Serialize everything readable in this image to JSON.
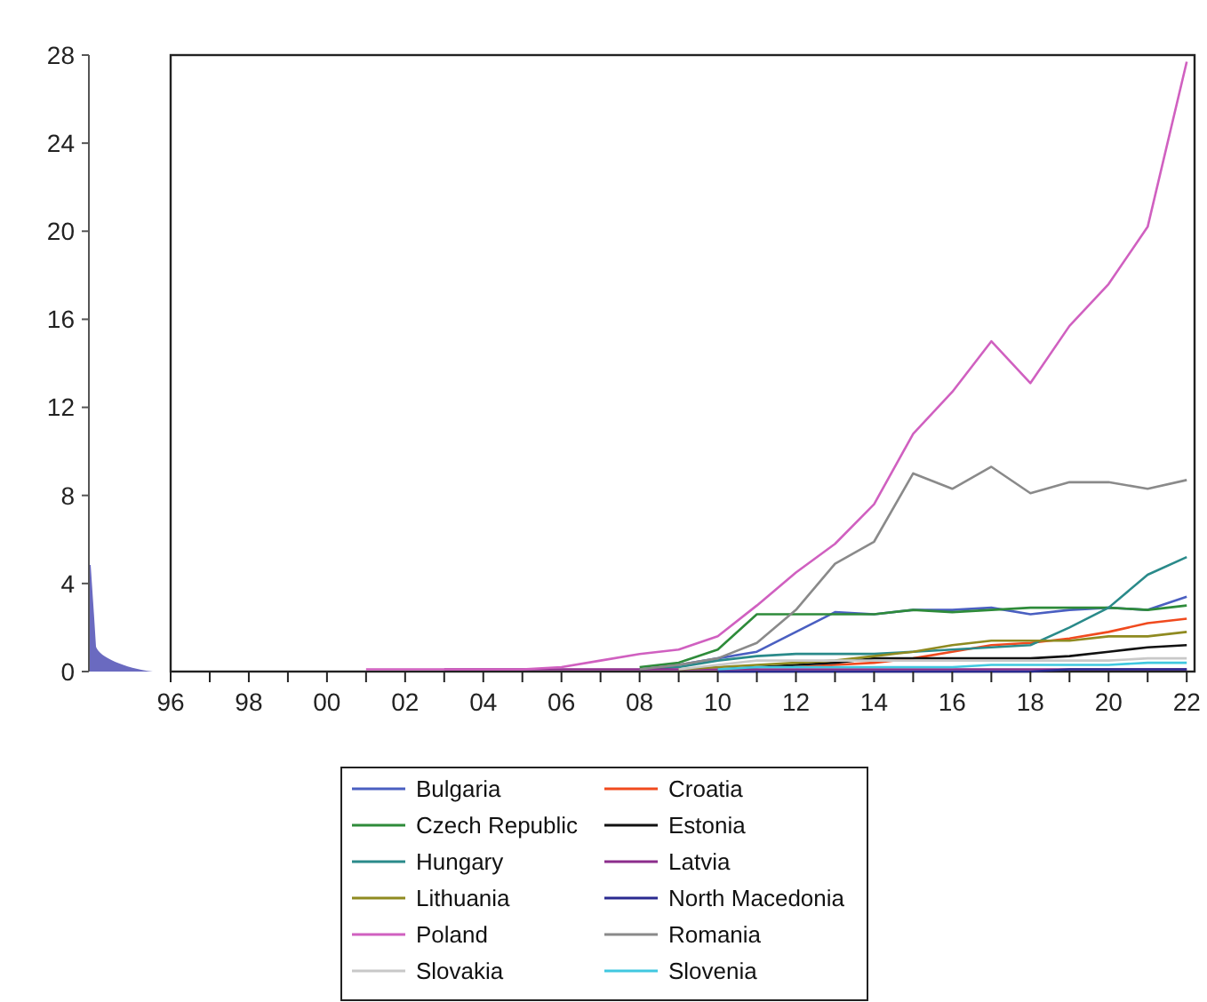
{
  "chart_data": {
    "type": "line",
    "x": [
      2001,
      2002,
      2003,
      2004,
      2005,
      2006,
      2007,
      2008,
      2009,
      2010,
      2011,
      2012,
      2013,
      2014,
      2015,
      2016,
      2017,
      2018,
      2019,
      2020,
      2021,
      2022
    ],
    "xlim": [
      1996,
      2022.2
    ],
    "ylim": [
      0,
      28
    ],
    "yticks": [
      0,
      4,
      8,
      12,
      16,
      20,
      24,
      28
    ],
    "legend": "bottom",
    "marker": "none",
    "line_style": "solid",
    "xticks": [
      {
        "value": 1996,
        "label": "96"
      },
      {
        "value": 1997,
        "label": null
      },
      {
        "value": 1998,
        "label": "98"
      },
      {
        "value": 1999,
        "label": null
      },
      {
        "value": 2000,
        "label": "00"
      },
      {
        "value": 2001,
        "label": null
      },
      {
        "value": 2002,
        "label": "02"
      },
      {
        "value": 2003,
        "label": null
      },
      {
        "value": 2004,
        "label": "04"
      },
      {
        "value": 2005,
        "label": null
      },
      {
        "value": 2006,
        "label": "06"
      },
      {
        "value": 2007,
        "label": null
      },
      {
        "value": 2008,
        "label": "08"
      },
      {
        "value": 2009,
        "label": null
      },
      {
        "value": 2010,
        "label": "10"
      },
      {
        "value": 2011,
        "label": null
      },
      {
        "value": 2012,
        "label": "12"
      },
      {
        "value": 2013,
        "label": null
      },
      {
        "value": 2014,
        "label": "14"
      },
      {
        "value": 2015,
        "label": null
      },
      {
        "value": 2016,
        "label": "16"
      },
      {
        "value": 2017,
        "label": null
      },
      {
        "value": 2018,
        "label": "18"
      },
      {
        "value": 2019,
        "label": null
      },
      {
        "value": 2020,
        "label": "20"
      },
      {
        "value": 2021,
        "label": null
      },
      {
        "value": 2022,
        "label": "22"
      }
    ],
    "series": [
      {
        "name": "Bulgaria",
        "color": "#4a5fc1",
        "values": [
          null,
          null,
          null,
          null,
          null,
          null,
          null,
          0.1,
          0.3,
          0.6,
          0.9,
          1.8,
          2.7,
          2.6,
          2.8,
          2.8,
          2.9,
          2.6,
          2.8,
          2.9,
          2.8,
          3.4
        ]
      },
      {
        "name": "Croatia",
        "color": "#f04a1e",
        "values": [
          null,
          null,
          null,
          null,
          null,
          null,
          null,
          null,
          null,
          null,
          null,
          0.2,
          0.3,
          0.4,
          0.6,
          0.9,
          1.2,
          1.3,
          1.5,
          1.8,
          2.2,
          2.4
        ]
      },
      {
        "name": "Czech Republic",
        "color": "#2e8b3a",
        "values": [
          null,
          null,
          null,
          null,
          null,
          null,
          null,
          0.2,
          0.4,
          1.0,
          2.6,
          2.6,
          2.6,
          2.6,
          2.8,
          2.7,
          2.8,
          2.9,
          2.9,
          2.9,
          2.8,
          3.0
        ]
      },
      {
        "name": "Estonia",
        "color": "#111111",
        "values": [
          null,
          null,
          null,
          null,
          null,
          null,
          null,
          null,
          null,
          0.1,
          0.2,
          0.3,
          0.4,
          0.6,
          0.6,
          0.6,
          0.6,
          0.6,
          0.7,
          0.9,
          1.1,
          1.2
        ]
      },
      {
        "name": "Hungary",
        "color": "#2a8a8a",
        "values": [
          null,
          null,
          null,
          null,
          null,
          null,
          null,
          0.1,
          0.2,
          0.5,
          0.7,
          0.8,
          0.8,
          0.8,
          0.9,
          1.0,
          1.1,
          1.2,
          2.0,
          2.9,
          4.4,
          5.2
        ]
      },
      {
        "name": "Latvia",
        "color": "#8b2d8b",
        "values": [
          null,
          null,
          0.1,
          0.1,
          0.1,
          0.1,
          0.1,
          0.1,
          0.1,
          0.1,
          0.1,
          0.1,
          0.1,
          0.1,
          0.1,
          0.1,
          0.1,
          0.1,
          0.1,
          0.1,
          0.1,
          0.1
        ]
      },
      {
        "name": "Lithuania",
        "color": "#8f8a20",
        "values": [
          null,
          null,
          null,
          null,
          null,
          null,
          null,
          null,
          0.1,
          0.2,
          0.3,
          0.4,
          0.5,
          0.7,
          0.9,
          1.2,
          1.4,
          1.4,
          1.4,
          1.6,
          1.6,
          1.8
        ]
      },
      {
        "name": "North Macedonia",
        "color": "#2a2a90",
        "values": [
          null,
          null,
          null,
          null,
          null,
          null,
          null,
          null,
          null,
          0,
          0,
          0,
          0,
          0,
          0,
          0,
          0,
          0,
          0.1,
          0.1,
          0.1,
          0.1
        ]
      },
      {
        "name": "Poland",
        "color": "#d060c0",
        "values": [
          0.1,
          0.1,
          0.1,
          0.1,
          0.1,
          0.2,
          0.5,
          0.8,
          1.0,
          1.6,
          3.0,
          4.5,
          5.8,
          7.6,
          10.8,
          12.7,
          15.0,
          13.1,
          15.7,
          17.6,
          20.2,
          27.7
        ]
      },
      {
        "name": "Romania",
        "color": "#8a8a8a",
        "values": [
          null,
          null,
          null,
          null,
          null,
          null,
          null,
          0.1,
          0.3,
          0.6,
          1.3,
          2.8,
          4.9,
          5.9,
          9.0,
          8.3,
          9.3,
          8.1,
          8.6,
          8.6,
          8.3,
          8.7
        ]
      },
      {
        "name": "Slovakia",
        "color": "#c8c8c8",
        "values": [
          null,
          null,
          null,
          null,
          null,
          null,
          null,
          null,
          0.1,
          0.3,
          0.5,
          0.5,
          0.5,
          0.5,
          0.5,
          0.5,
          0.5,
          0.5,
          0.5,
          0.5,
          0.6,
          0.6
        ]
      },
      {
        "name": "Slovenia",
        "color": "#40c8e0",
        "values": [
          null,
          null,
          null,
          null,
          null,
          null,
          null,
          null,
          null,
          0.1,
          0.2,
          0.2,
          0.2,
          0.2,
          0.2,
          0.2,
          0.3,
          0.3,
          0.3,
          0.3,
          0.4,
          0.4
        ]
      }
    ]
  }
}
